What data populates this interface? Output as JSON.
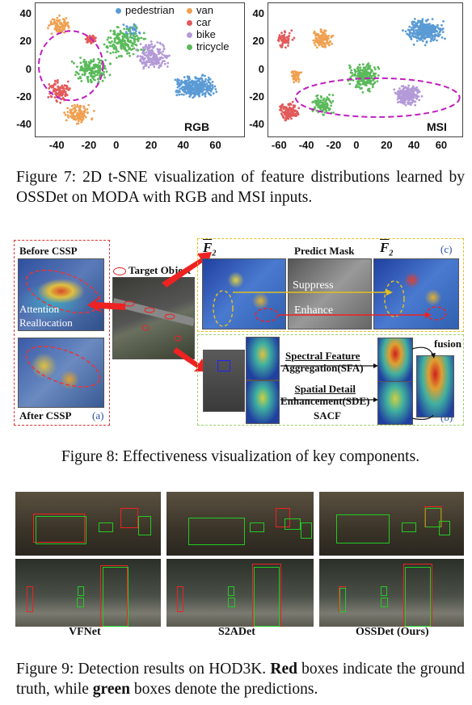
{
  "figure7": {
    "caption_label": "Figure 7:",
    "caption_text": "2D t-SNE visualization of feature distributions learned by OSSDet on MODA with RGB and MSI inputs.",
    "legend": [
      {
        "name": "pedestrian",
        "color": "#5b9bd5"
      },
      {
        "name": "van",
        "color": "#f0a050"
      },
      {
        "name": "car",
        "color": "#e35a5a"
      },
      {
        "name": "bike",
        "color": "#b49ad8"
      },
      {
        "name": "tricycle",
        "color": "#5aba5a"
      }
    ],
    "chart_data": [
      {
        "type": "scatter",
        "title": "RGB",
        "x_ticks": [
          "-40",
          "-20",
          "0",
          "20",
          "40",
          "60"
        ],
        "y_ticks": [
          "40",
          "20",
          "0",
          "-20",
          "-40"
        ],
        "xlim": [
          -55,
          75
        ],
        "ylim": [
          -48,
          48
        ],
        "clusters": [
          {
            "series": "pedestrian",
            "cx": 45,
            "cy": -12,
            "rx": 16,
            "ry": 10,
            "n": 320
          },
          {
            "series": "pedestrian",
            "cx": 5,
            "cy": 28,
            "rx": 8,
            "ry": 8,
            "n": 40
          },
          {
            "series": "van",
            "cx": -40,
            "cy": 32,
            "rx": 9,
            "ry": 8,
            "n": 90
          },
          {
            "series": "van",
            "cx": -28,
            "cy": -32,
            "rx": 10,
            "ry": 9,
            "n": 120
          },
          {
            "series": "car",
            "cx": -40,
            "cy": -15,
            "rx": 9,
            "ry": 11,
            "n": 110
          },
          {
            "series": "car",
            "cx": -20,
            "cy": 22,
            "rx": 6,
            "ry": 6,
            "n": 40
          },
          {
            "series": "bike",
            "cx": 18,
            "cy": 10,
            "rx": 13,
            "ry": 12,
            "n": 200
          },
          {
            "series": "tricycle",
            "cx": 0,
            "cy": 20,
            "rx": 16,
            "ry": 14,
            "n": 180
          },
          {
            "series": "tricycle",
            "cx": -20,
            "cy": 0,
            "rx": 15,
            "ry": 12,
            "n": 160
          }
        ],
        "highlight_ellipse": {
          "cx": -33,
          "cy": 3,
          "rx": 20,
          "ry": 25
        }
      },
      {
        "type": "scatter",
        "title": "MSI",
        "x_ticks": [
          "-60",
          "-40",
          "-20",
          "0",
          "20",
          "40",
          "60"
        ],
        "y_ticks": [
          "40",
          "20",
          "0",
          "-20",
          "-40"
        ],
        "xlim": [
          -70,
          72
        ],
        "ylim": [
          -48,
          48
        ],
        "clusters": [
          {
            "series": "pedestrian",
            "cx": 45,
            "cy": 28,
            "rx": 17,
            "ry": 11,
            "n": 340
          },
          {
            "series": "van",
            "cx": -30,
            "cy": 22,
            "rx": 10,
            "ry": 9,
            "n": 110
          },
          {
            "series": "van",
            "cx": -50,
            "cy": -5,
            "rx": 6,
            "ry": 6,
            "n": 40
          },
          {
            "series": "car",
            "cx": -55,
            "cy": -30,
            "rx": 9,
            "ry": 8,
            "n": 130
          },
          {
            "series": "car",
            "cx": -58,
            "cy": 22,
            "rx": 8,
            "ry": 8,
            "n": 60
          },
          {
            "series": "bike",
            "cx": 32,
            "cy": -18,
            "rx": 13,
            "ry": 9,
            "n": 220
          },
          {
            "series": "tricycle",
            "cx": 0,
            "cy": -5,
            "rx": 14,
            "ry": 13,
            "n": 220
          },
          {
            "series": "tricycle",
            "cx": -30,
            "cy": -25,
            "rx": 10,
            "ry": 9,
            "n": 100
          }
        ],
        "highlight_ellipse": {
          "cx": 10,
          "cy": -20,
          "rx": 60,
          "ry": 14
        }
      }
    ]
  },
  "figure8": {
    "caption_text": "Figure 8: Effectiveness visualization of key components.",
    "before_label": "Before CSSP",
    "after_label": "After CSSP",
    "attention_label": "Attention Reallocation",
    "target_label": "Target Object",
    "panel_a": "(a)",
    "panel_b": "(b)",
    "panel_c": "(c)",
    "f2_hat": "F",
    "f2_bar": "F",
    "f2_sub": "2",
    "predict_mask": "Predict Mask",
    "suppress": "Suppress",
    "enhance": "Enhance",
    "sfa_line1": "Spectral Feature",
    "sfa_line2": "Aggregation(SFA)",
    "sde_line1": "Spatial Detail",
    "sde_line2": "Enhancement(SDE)",
    "sacf": "SACF",
    "fusion": "fusion"
  },
  "figure9": {
    "caption_prefix": "Figure 9: Detection results on HOD3K.",
    "red_word": "Red",
    "mid_text": "boxes indicate the ground truth, while",
    "green_word": "green",
    "end_text": "boxes denote the predictions.",
    "methods": [
      "VFNet",
      "S2ADet",
      "OSSDet (Ours)"
    ]
  }
}
